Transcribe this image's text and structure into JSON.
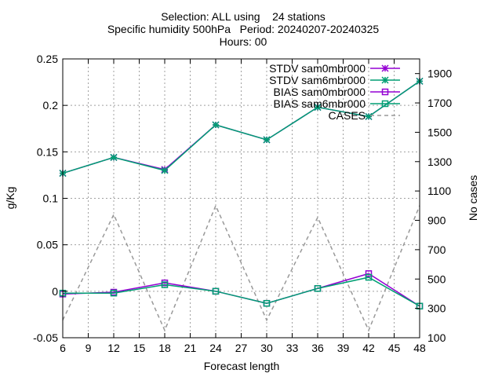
{
  "chart_data": {
    "type": "line",
    "title_lines": [
      "Selection: ALL using    24 stations",
      "Specific humidity 500hPa   Period: 20240207-20240325",
      "Hours: 00"
    ],
    "xlabel": "Forecast length",
    "ylabel": "g/Kg",
    "y2label": "No cases",
    "x": [
      6,
      12,
      18,
      24,
      30,
      36,
      42,
      48
    ],
    "xlim": [
      6,
      48
    ],
    "xticks": [
      6,
      9,
      12,
      15,
      18,
      21,
      24,
      27,
      30,
      33,
      36,
      39,
      42,
      45,
      48
    ],
    "ylim": [
      -0.05,
      0.25
    ],
    "yticks": [
      -0.05,
      0,
      0.05,
      0.1,
      0.15,
      0.2,
      0.25
    ],
    "y2lim": [
      100,
      2000
    ],
    "y2ticks": [
      100,
      300,
      500,
      700,
      900,
      1100,
      1300,
      1500,
      1700,
      1900
    ],
    "grid": true,
    "legend_position": "top-right",
    "series": [
      {
        "name": "STDV sam0mbr000",
        "axis": "y",
        "color": "#9400d3",
        "marker": "star",
        "values": [
          0.127,
          0.144,
          0.131,
          0.179,
          0.163,
          0.198,
          0.188,
          0.226
        ]
      },
      {
        "name": "STDV sam6mbr000",
        "axis": "y",
        "color": "#009e73",
        "marker": "star",
        "values": [
          0.127,
          0.144,
          0.13,
          0.179,
          0.163,
          0.198,
          0.188,
          0.226
        ]
      },
      {
        "name": "BIAS sam0mbr000",
        "axis": "y",
        "color": "#9400d3",
        "marker": "square",
        "values": [
          -0.003,
          -0.001,
          0.009,
          0.0,
          -0.013,
          0.003,
          0.019,
          -0.016
        ]
      },
      {
        "name": "BIAS sam6mbr000",
        "axis": "y",
        "color": "#009e73",
        "marker": "square",
        "values": [
          -0.002,
          -0.002,
          0.007,
          0.0,
          -0.013,
          0.003,
          0.015,
          -0.016
        ]
      },
      {
        "name": "CASES",
        "axis": "y2",
        "color": "#999999",
        "marker": "none",
        "dashed": true,
        "values": [
          220,
          940,
          150,
          1000,
          220,
          920,
          150,
          1000
        ]
      }
    ]
  }
}
